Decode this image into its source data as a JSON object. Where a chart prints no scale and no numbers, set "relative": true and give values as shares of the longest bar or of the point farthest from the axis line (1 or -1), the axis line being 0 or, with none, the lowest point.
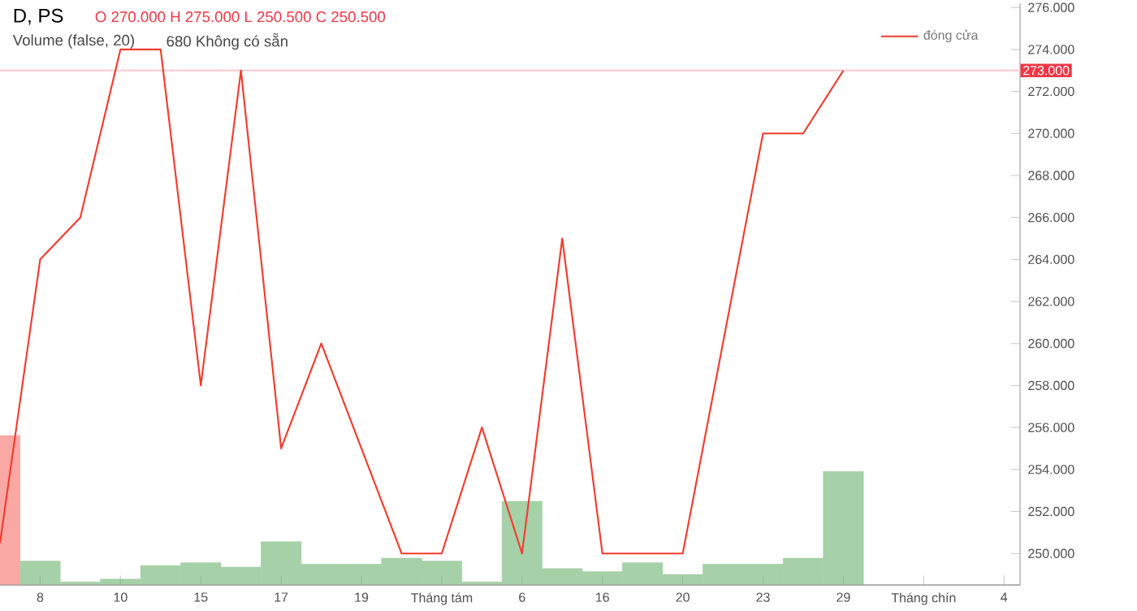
{
  "chart_data": [
    {
      "type": "line",
      "title": "D, PS",
      "annotations": [
        "O 270.000 H 275.000 L 250.500 C 250.500",
        "Volume (false, 20)",
        "680 Không có sẵn"
      ],
      "categories": [
        null,
        "8",
        null,
        "10",
        null,
        "15",
        null,
        "17",
        null,
        "19",
        null,
        "Tháng tám",
        null,
        "6",
        null,
        "16",
        null,
        "20",
        null,
        "23",
        null,
        "29",
        null,
        "Tháng chín",
        null,
        "4"
      ],
      "series": [
        {
          "name": "đóng cửa",
          "color": "#f23c2e",
          "values": [
            250.5,
            264,
            266,
            274,
            274,
            258,
            273,
            255,
            260,
            255,
            250,
            250,
            256,
            250,
            265,
            250,
            250,
            250,
            260,
            270,
            270,
            273,
            null,
            null,
            null,
            null
          ]
        }
      ],
      "ylim": [
        248.5,
        276.2
      ],
      "yticks": [
        {
          "value": 250,
          "label": "250.000"
        },
        {
          "value": 252,
          "label": "252.000"
        },
        {
          "value": 254,
          "label": "254.000"
        },
        {
          "value": 256,
          "label": "256.000"
        },
        {
          "value": 258,
          "label": "258.000"
        },
        {
          "value": 260,
          "label": "260.000"
        },
        {
          "value": 262,
          "label": "262.000"
        },
        {
          "value": 264,
          "label": "264.000"
        },
        {
          "value": 266,
          "label": "266.000"
        },
        {
          "value": 268,
          "label": "268.000"
        },
        {
          "value": 270,
          "label": "270.000"
        },
        {
          "value": 272,
          "label": "272.000"
        },
        {
          "value": 274,
          "label": "274.000"
        },
        {
          "value": 276,
          "label": "276.000"
        }
      ],
      "ref_lines": [
        {
          "axis": "y",
          "value": 273,
          "label": "273.000",
          "color": "#f8c8d0"
        }
      ],
      "marker": "none",
      "grid": false,
      "legend": "top right"
    },
    {
      "type": "bar",
      "relative": true,
      "tick_labels": false,
      "categories": [
        null,
        null,
        null,
        null,
        null,
        null,
        null,
        null,
        null,
        null,
        null,
        null,
        null,
        null,
        null,
        null,
        null,
        null,
        null,
        null,
        null,
        null,
        null,
        null,
        null,
        null
      ],
      "values": [
        1,
        0.16,
        0.02,
        0.04,
        0.13,
        0.15,
        0.12,
        0.29,
        0.14,
        0.14,
        0.18,
        0.16,
        0.02,
        0.56,
        0.11,
        0.09,
        0.15,
        0.07,
        0.14,
        0.14,
        0.18,
        0.76,
        null,
        null,
        null,
        null
      ],
      "colors": [
        "#f9a8a4",
        "#a5d0a8",
        "#a5d0a8",
        "#a5d0a8",
        "#a5d0a8",
        "#a5d0a8",
        "#a5d0a8",
        "#a5d0a8",
        "#a5d0a8",
        "#a5d0a8",
        "#a5d0a8",
        "#a5d0a8",
        "#a5d0a8",
        "#a5d0a8",
        "#a5d0a8",
        "#a5d0a8",
        "#a5d0a8",
        "#a5d0a8",
        "#a5d0a8",
        "#a5d0a8",
        "#a5d0a8",
        "#a5d0a8",
        "#a5d0a8",
        "#a5d0a8",
        "#a5d0a8",
        "#a5d0a8"
      ]
    }
  ]
}
